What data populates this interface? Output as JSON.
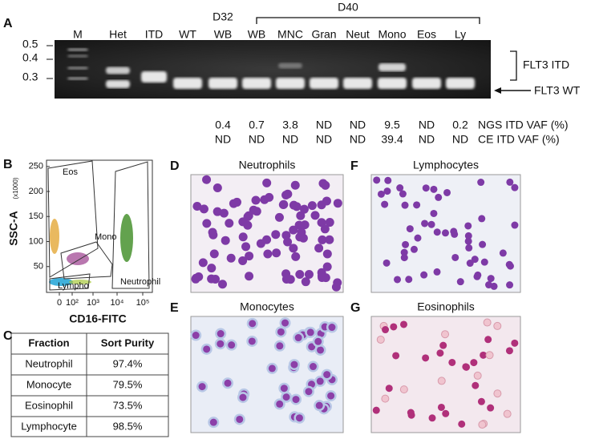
{
  "panel_a": {
    "letter": "A",
    "markers": [
      "0.5",
      "0.4",
      "0.3"
    ],
    "lanes": [
      {
        "label": "M"
      },
      {
        "label": "Het"
      },
      {
        "label": "ITD"
      },
      {
        "label": "WT"
      },
      {
        "top": "D32",
        "label": "WB"
      },
      {
        "label": "WB"
      },
      {
        "label": "MNC"
      },
      {
        "label": "Gran"
      },
      {
        "label": "Neut"
      },
      {
        "label": "Mono"
      },
      {
        "label": "Eos"
      },
      {
        "label": "Ly"
      }
    ],
    "group_label": "D40",
    "band_labels": [
      "FLT3 ITD",
      "FLT3 WT"
    ],
    "rows": [
      {
        "name": "NGS ITD VAF (%)",
        "values": [
          0.4,
          0.7,
          3.8,
          "ND",
          "ND",
          9.5,
          "ND",
          0.2
        ]
      },
      {
        "name": "CE ITD VAF (%)",
        "values": [
          "ND",
          "ND",
          "ND",
          "ND",
          "ND",
          39.4,
          "ND",
          "ND"
        ]
      }
    ]
  },
  "panel_b": {
    "letter": "B",
    "y_label": "SSC-A",
    "y_unit": "(x1000)",
    "x_label": "CD16-FITC",
    "yticks": [
      50,
      100,
      150,
      200,
      250
    ],
    "xticks": [
      "0",
      "10²",
      "10³",
      "10⁴",
      "10⁵"
    ],
    "gates": [
      "Eos",
      "Mono",
      "Lympho",
      "Neutrophil"
    ]
  },
  "panel_c": {
    "letter": "C",
    "header": [
      "Fraction",
      "Sort Purity"
    ],
    "rows": [
      [
        "Neutrophil",
        "97.4%"
      ],
      [
        "Monocyte",
        "79.5%"
      ],
      [
        "Eosinophil",
        "73.5%"
      ],
      [
        "Lymphocyte",
        "98.5%"
      ]
    ]
  },
  "images": [
    {
      "letter": "D",
      "title": "Neutrophils"
    },
    {
      "letter": "F",
      "title": "Lymphocytes"
    },
    {
      "letter": "E",
      "title": "Monocytes"
    },
    {
      "letter": "G",
      "title": "Eosinophils"
    }
  ]
}
